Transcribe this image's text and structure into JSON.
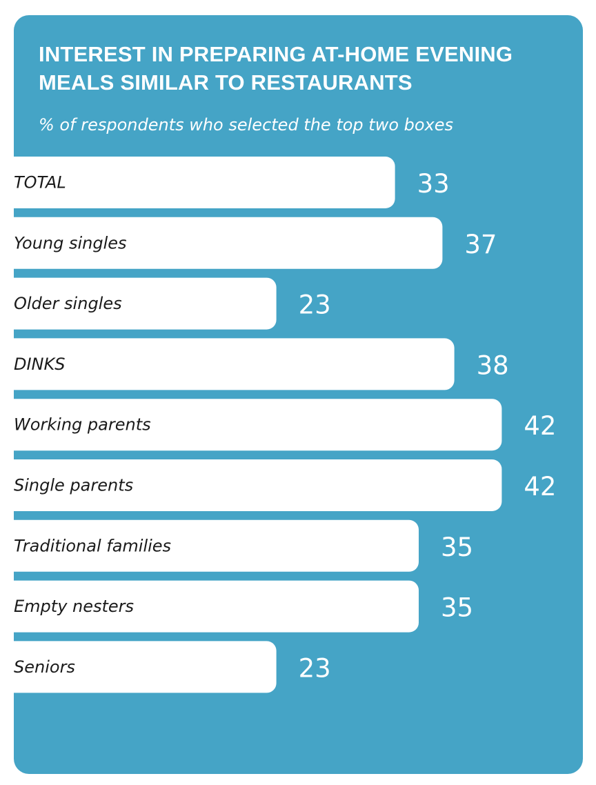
{
  "chart_data": {
    "type": "bar",
    "orientation": "horizontal",
    "title": "INTEREST IN PREPARING AT-HOME EVENING MEALS SIMILAR TO RESTAURANTS",
    "subtitle": "% of respondents who selected the top two boxes",
    "categories": [
      "TOTAL",
      "Young singles",
      "Older singles",
      "DINKS",
      "Working parents",
      "Single parents",
      "Traditional families",
      "Empty nesters",
      "Seniors"
    ],
    "values": [
      33,
      37,
      23,
      38,
      42,
      42,
      35,
      35,
      23
    ],
    "value_labels": [
      "33",
      "37",
      "23",
      "38",
      "42",
      "42",
      "35",
      "35",
      "23"
    ],
    "xlim": [
      0,
      50
    ],
    "grid": false,
    "legend": "none"
  },
  "colors": {
    "background": "#45a4c6",
    "bar": "#ffffff",
    "label_text": "#1a1a1a",
    "value_text": "#ffffff"
  }
}
